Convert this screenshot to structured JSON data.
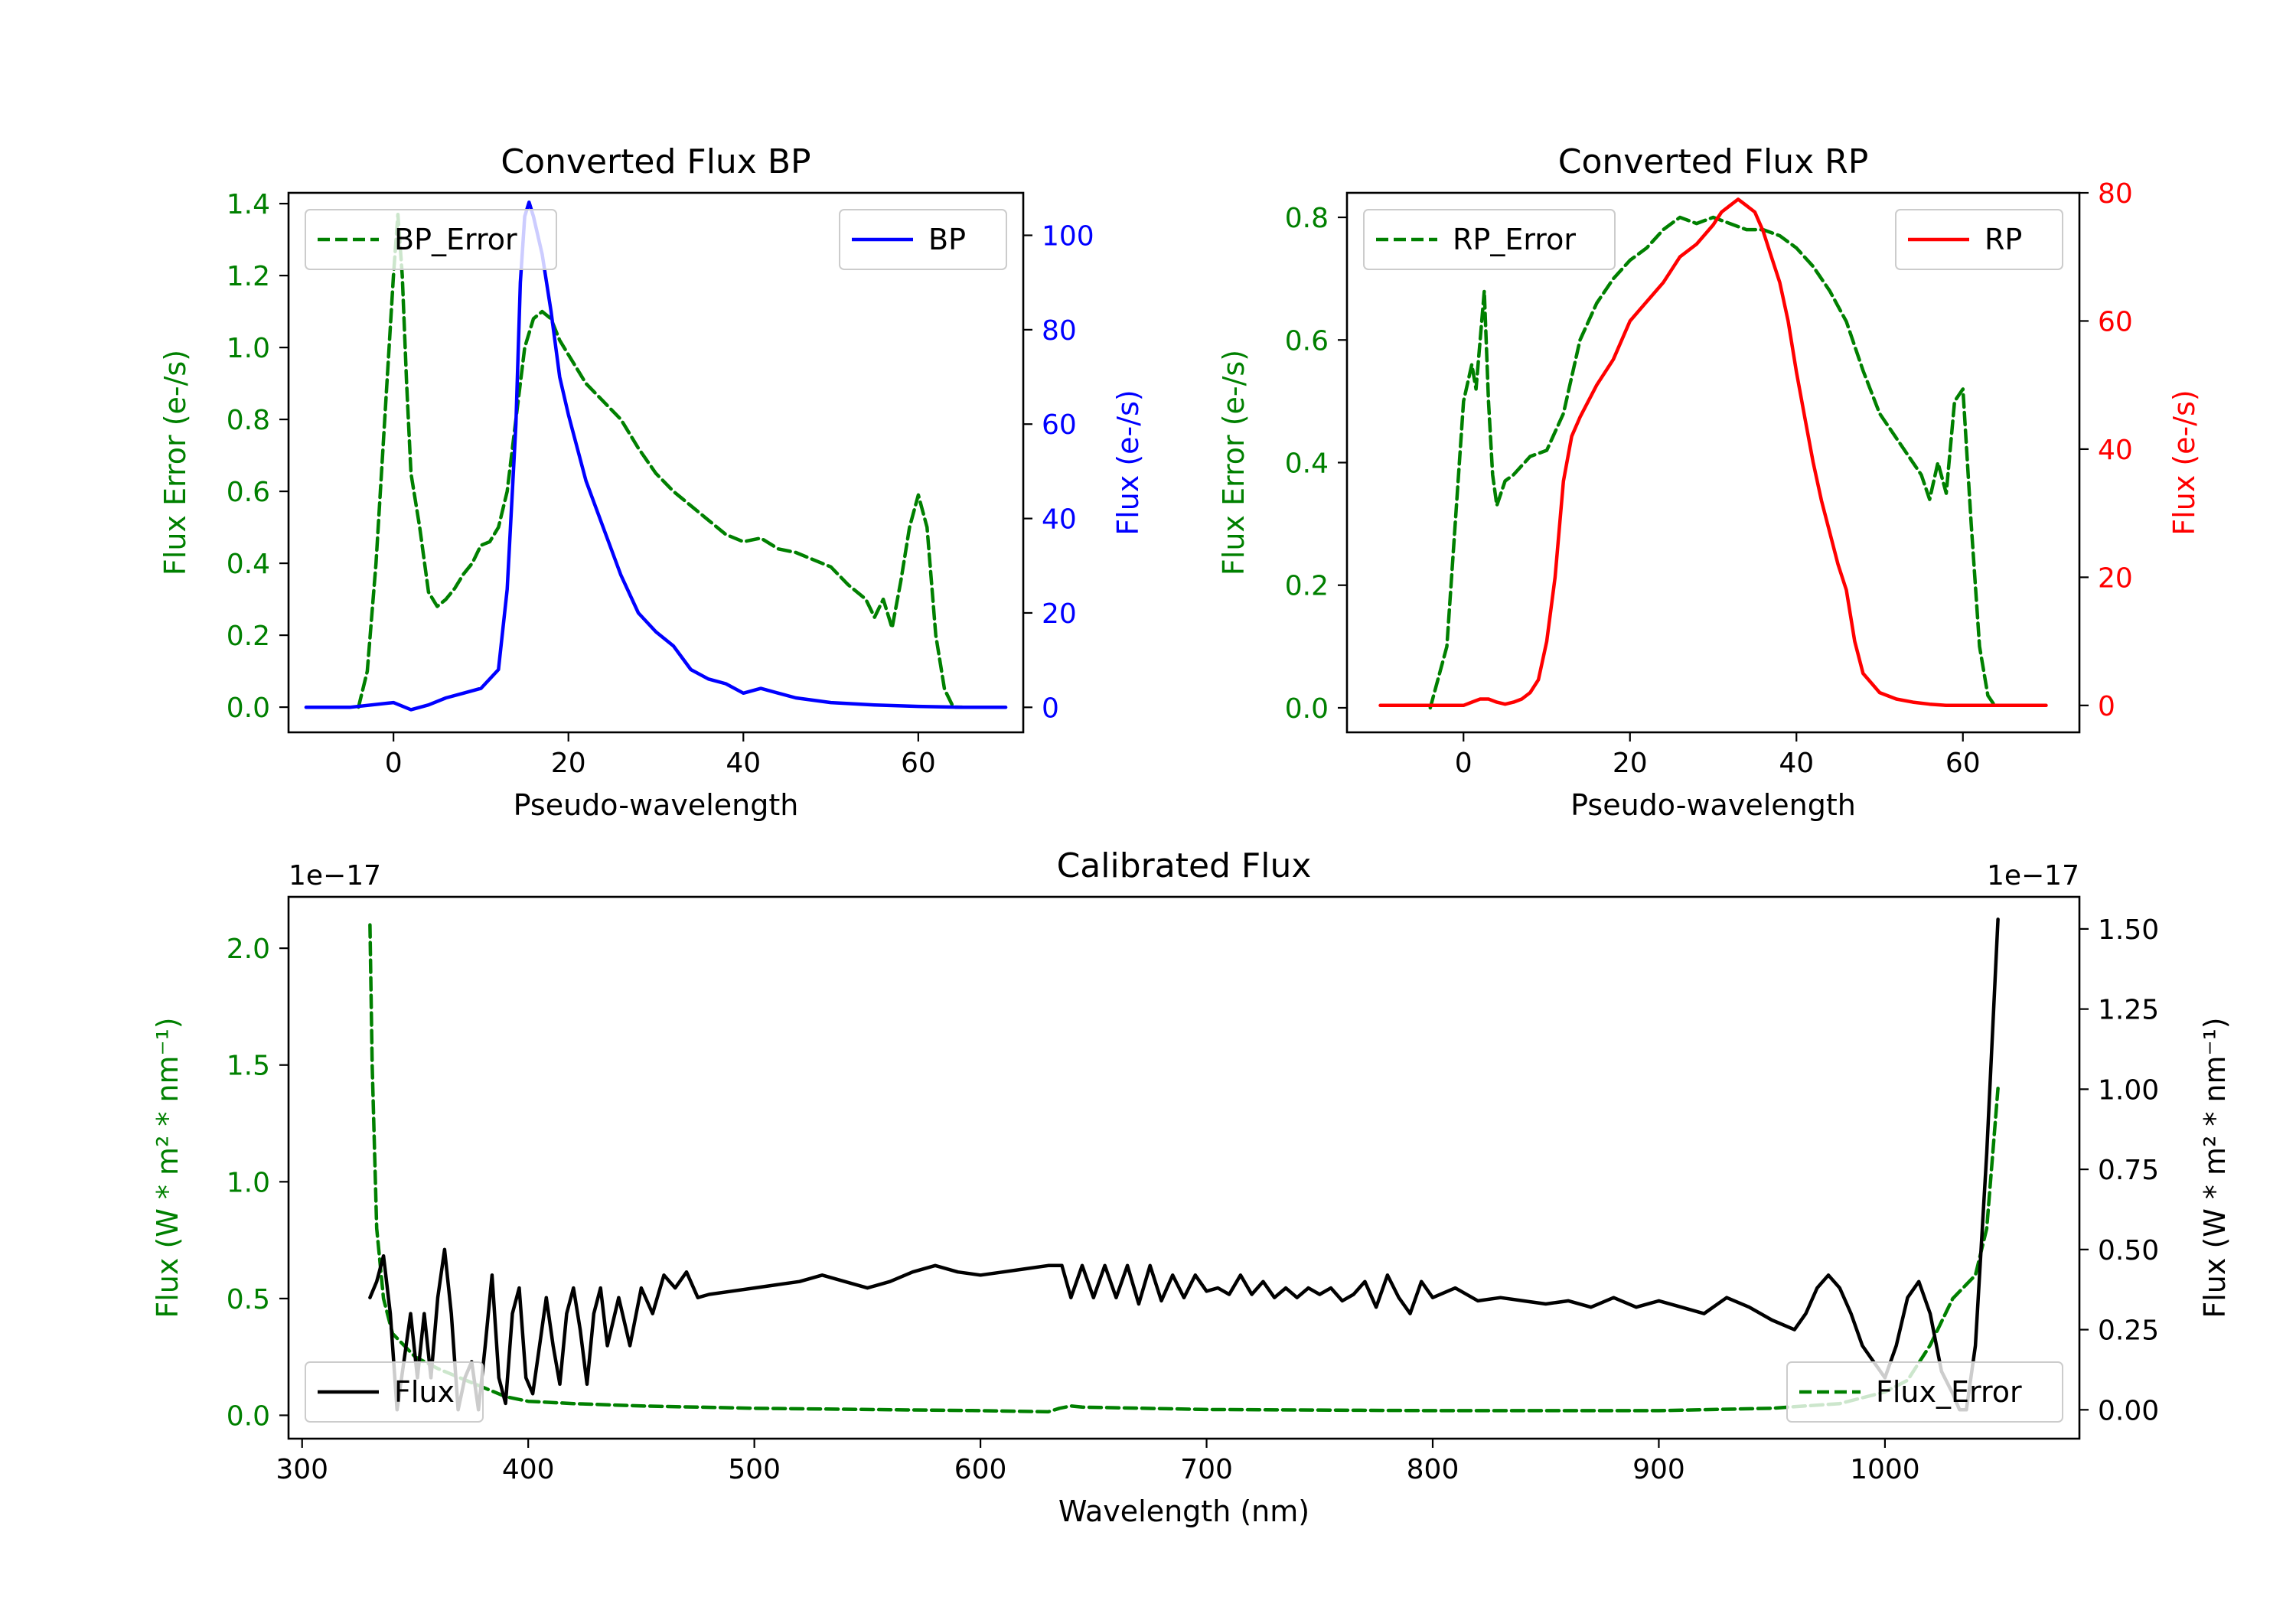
{
  "colors": {
    "error": "#008000",
    "bp": "#0000ff",
    "rp": "#ff0000",
    "flux": "#000000"
  },
  "chart_data": [
    {
      "id": "bp",
      "type": "line",
      "title": "Converted Flux BP",
      "xlabel": "Pseudo-wavelength",
      "ylabel_left": "Flux Error (e-/s)",
      "ylabel_right": "Flux (e-/s)",
      "xlim": [
        -12,
        72
      ],
      "ylim_left": [
        -0.07,
        1.43
      ],
      "ylim_right": [
        -5.3,
        109
      ],
      "xticks": [
        0,
        20,
        40,
        60
      ],
      "xtick_labels": [
        "0",
        "20",
        "40",
        "60"
      ],
      "yticks_left": [
        0.0,
        0.2,
        0.4,
        0.6,
        0.8,
        1.0,
        1.2,
        1.4
      ],
      "ytick_labels_left": [
        "0.0",
        "0.2",
        "0.4",
        "0.6",
        "0.8",
        "1.0",
        "1.2",
        "1.4"
      ],
      "yticks_right": [
        0,
        20,
        40,
        60,
        80,
        100
      ],
      "ytick_labels_right": [
        "0",
        "20",
        "40",
        "60",
        "80",
        "100"
      ],
      "legend_left": "BP_Error",
      "legend_right": "BP",
      "series": [
        {
          "name": "BP_Error",
          "axis": "left",
          "style": "dashed",
          "x": [
            -4,
            -3,
            -2,
            -1,
            0,
            0.5,
            1,
            1.5,
            2,
            3,
            4,
            5,
            6,
            7,
            8,
            9,
            10,
            11,
            12,
            13,
            14,
            15,
            16,
            17,
            18,
            19,
            20,
            22,
            24,
            26,
            28,
            30,
            32,
            34,
            36,
            38,
            40,
            42,
            44,
            46,
            48,
            50,
            52,
            54,
            55,
            56,
            57,
            58,
            59,
            60,
            61,
            62,
            63,
            64,
            65
          ],
          "y": [
            0.0,
            0.1,
            0.4,
            0.8,
            1.2,
            1.37,
            1.2,
            0.9,
            0.65,
            0.5,
            0.32,
            0.28,
            0.3,
            0.33,
            0.37,
            0.4,
            0.45,
            0.46,
            0.5,
            0.6,
            0.8,
            1.0,
            1.08,
            1.1,
            1.08,
            1.02,
            0.98,
            0.9,
            0.85,
            0.8,
            0.72,
            0.65,
            0.6,
            0.56,
            0.52,
            0.48,
            0.46,
            0.47,
            0.44,
            0.43,
            0.41,
            0.39,
            0.34,
            0.3,
            0.25,
            0.3,
            0.22,
            0.35,
            0.5,
            0.59,
            0.5,
            0.2,
            0.05,
            0.0,
            0.0
          ]
        },
        {
          "name": "BP",
          "axis": "right",
          "style": "solid",
          "x": [
            -10,
            -5,
            0,
            2,
            4,
            6,
            8,
            10,
            12,
            13,
            14,
            14.5,
            15,
            15.5,
            16,
            17,
            18,
            19,
            20,
            22,
            24,
            26,
            28,
            30,
            32,
            34,
            36,
            38,
            40,
            42,
            44,
            46,
            50,
            55,
            60,
            65,
            70
          ],
          "y": [
            0,
            0,
            1,
            -0.5,
            0.5,
            2,
            3,
            4,
            8,
            25,
            60,
            90,
            104,
            107,
            104,
            96,
            84,
            70,
            62,
            48,
            38,
            28,
            20,
            16,
            13,
            8,
            6,
            5,
            3,
            4,
            3,
            2,
            1,
            0.5,
            0.2,
            0,
            0
          ]
        }
      ]
    },
    {
      "id": "rp",
      "type": "line",
      "title": "Converted Flux RP",
      "xlabel": "Pseudo-wavelength",
      "ylabel_left": "Flux Error (e-/s)",
      "ylabel_right": "Flux (e-/s)",
      "xlim": [
        -14,
        74
      ],
      "ylim_left": [
        -0.04,
        0.84
      ],
      "ylim_right": [
        -4.2,
        80
      ],
      "xticks": [
        0,
        20,
        40,
        60
      ],
      "xtick_labels": [
        "0",
        "20",
        "40",
        "60"
      ],
      "yticks_left": [
        0.0,
        0.2,
        0.4,
        0.6,
        0.8
      ],
      "ytick_labels_left": [
        "0.0",
        "0.2",
        "0.4",
        "0.6",
        "0.8"
      ],
      "yticks_right": [
        0,
        20,
        40,
        60,
        80
      ],
      "ytick_labels_right": [
        "0",
        "20",
        "40",
        "60",
        "80"
      ],
      "legend_left": "RP_Error",
      "legend_right": "RP",
      "series": [
        {
          "name": "RP_Error",
          "axis": "left",
          "style": "dashed",
          "x": [
            -4,
            -2,
            -1,
            0,
            1,
            1.5,
            2,
            2.5,
            3,
            3.5,
            4,
            5,
            6,
            8,
            10,
            12,
            14,
            16,
            18,
            20,
            22,
            24,
            26,
            28,
            30,
            32,
            34,
            36,
            38,
            40,
            42,
            44,
            46,
            48,
            50,
            52,
            54,
            55,
            56,
            57,
            58,
            59,
            60,
            61,
            62,
            63,
            64
          ],
          "y": [
            0.0,
            0.1,
            0.3,
            0.5,
            0.56,
            0.52,
            0.6,
            0.68,
            0.5,
            0.38,
            0.33,
            0.37,
            0.38,
            0.41,
            0.42,
            0.48,
            0.6,
            0.66,
            0.7,
            0.73,
            0.75,
            0.78,
            0.8,
            0.79,
            0.8,
            0.79,
            0.78,
            0.78,
            0.77,
            0.75,
            0.72,
            0.68,
            0.63,
            0.55,
            0.48,
            0.44,
            0.4,
            0.38,
            0.34,
            0.4,
            0.35,
            0.5,
            0.52,
            0.3,
            0.1,
            0.02,
            0.0
          ]
        },
        {
          "name": "RP",
          "axis": "right",
          "style": "solid",
          "x": [
            -10,
            -5,
            0,
            1,
            2,
            3,
            4,
            5,
            6,
            7,
            8,
            9,
            10,
            11,
            12,
            13,
            14,
            16,
            18,
            20,
            22,
            24,
            26,
            28,
            30,
            31,
            32,
            33,
            34,
            35,
            36,
            37,
            38,
            39,
            40,
            41,
            42,
            43,
            44,
            45,
            46,
            47,
            48,
            50,
            52,
            54,
            56,
            58,
            60,
            65,
            70
          ],
          "y": [
            0,
            0,
            0,
            0.5,
            1,
            1,
            0.5,
            0.2,
            0.5,
            1,
            2,
            4,
            10,
            20,
            35,
            42,
            45,
            50,
            54,
            60,
            63,
            66,
            70,
            72,
            75,
            77,
            78,
            79,
            78,
            77,
            74,
            70,
            66,
            60,
            52,
            45,
            38,
            32,
            27,
            22,
            18,
            10,
            5,
            2,
            1,
            0.5,
            0.2,
            0,
            0,
            0,
            0
          ]
        }
      ]
    },
    {
      "id": "calibrated",
      "type": "line",
      "title": "Calibrated Flux",
      "xlabel": "Wavelength (nm)",
      "ylabel_left": "Flux (W * m² * nm⁻¹)",
      "ylabel_right": "Flux (W * m² * nm⁻¹)",
      "offset_left": "1e−17",
      "offset_right": "1e−17",
      "xlim": [
        294,
        1086
      ],
      "ylim_left": [
        -0.1,
        2.22
      ],
      "ylim_right": [
        -0.09,
        1.6
      ],
      "xticks": [
        300,
        400,
        500,
        600,
        700,
        800,
        900,
        1000
      ],
      "xtick_labels": [
        "300",
        "400",
        "500",
        "600",
        "700",
        "800",
        "900",
        "1000"
      ],
      "yticks_left": [
        0.0,
        0.5,
        1.0,
        1.5,
        2.0
      ],
      "ytick_labels_left": [
        "0.0",
        "0.5",
        "1.0",
        "1.5",
        "2.0"
      ],
      "yticks_right": [
        0.0,
        0.25,
        0.5,
        0.75,
        1.0,
        1.25,
        1.5
      ],
      "ytick_labels_right": [
        "0.00",
        "0.25",
        "0.50",
        "0.75",
        "1.00",
        "1.25",
        "1.50"
      ],
      "legend_left": "Flux",
      "legend_right": "Flux_Error",
      "series": [
        {
          "name": "Flux_Error",
          "axis": "left",
          "style": "dashed",
          "x": [
            330,
            331,
            333,
            336,
            340,
            345,
            350,
            360,
            370,
            380,
            390,
            400,
            420,
            450,
            500,
            550,
            600,
            630,
            635,
            640,
            645,
            700,
            800,
            900,
            950,
            980,
            1000,
            1010,
            1020,
            1030,
            1040,
            1045,
            1050
          ],
          "y": [
            2.1,
            1.5,
            0.8,
            0.5,
            0.35,
            0.3,
            0.25,
            0.2,
            0.16,
            0.12,
            0.08,
            0.06,
            0.05,
            0.04,
            0.03,
            0.025,
            0.02,
            0.015,
            0.03,
            0.04,
            0.035,
            0.025,
            0.02,
            0.02,
            0.03,
            0.05,
            0.1,
            0.15,
            0.3,
            0.5,
            0.6,
            0.8,
            1.4
          ]
        },
        {
          "name": "Flux",
          "axis": "right",
          "style": "solid",
          "x": [
            330,
            333,
            336,
            339,
            342,
            345,
            348,
            351,
            354,
            357,
            360,
            363,
            366,
            369,
            372,
            375,
            378,
            381,
            384,
            387,
            390,
            393,
            396,
            399,
            402,
            405,
            408,
            411,
            414,
            417,
            420,
            423,
            426,
            429,
            432,
            435,
            440,
            445,
            450,
            455,
            460,
            465,
            470,
            475,
            480,
            490,
            500,
            510,
            520,
            530,
            540,
            550,
            560,
            570,
            580,
            590,
            600,
            610,
            620,
            630,
            636,
            640,
            645,
            650,
            655,
            660,
            665,
            670,
            675,
            680,
            685,
            690,
            695,
            700,
            705,
            710,
            715,
            720,
            725,
            730,
            735,
            740,
            745,
            750,
            755,
            760,
            765,
            770,
            775,
            780,
            785,
            790,
            795,
            800,
            810,
            820,
            830,
            840,
            850,
            860,
            870,
            880,
            890,
            900,
            910,
            920,
            930,
            940,
            950,
            960,
            965,
            970,
            975,
            980,
            985,
            990,
            995,
            1000,
            1005,
            1010,
            1015,
            1020,
            1025,
            1030,
            1033,
            1036,
            1040,
            1045,
            1050
          ],
          "y": [
            0.35,
            0.4,
            0.48,
            0.3,
            0.0,
            0.15,
            0.3,
            0.1,
            0.3,
            0.1,
            0.35,
            0.5,
            0.3,
            0.0,
            0.1,
            0.15,
            0.0,
            0.2,
            0.42,
            0.1,
            0.02,
            0.3,
            0.38,
            0.1,
            0.05,
            0.2,
            0.35,
            0.2,
            0.08,
            0.3,
            0.38,
            0.25,
            0.08,
            0.3,
            0.38,
            0.2,
            0.35,
            0.2,
            0.38,
            0.3,
            0.42,
            0.38,
            0.43,
            0.35,
            0.36,
            0.37,
            0.38,
            0.39,
            0.4,
            0.42,
            0.4,
            0.38,
            0.4,
            0.43,
            0.45,
            0.43,
            0.42,
            0.43,
            0.44,
            0.45,
            0.45,
            0.35,
            0.45,
            0.35,
            0.45,
            0.35,
            0.45,
            0.33,
            0.45,
            0.34,
            0.42,
            0.35,
            0.42,
            0.37,
            0.38,
            0.36,
            0.42,
            0.36,
            0.4,
            0.35,
            0.38,
            0.35,
            0.38,
            0.36,
            0.38,
            0.34,
            0.36,
            0.4,
            0.32,
            0.42,
            0.35,
            0.3,
            0.4,
            0.35,
            0.38,
            0.34,
            0.35,
            0.34,
            0.33,
            0.34,
            0.32,
            0.35,
            0.32,
            0.34,
            0.32,
            0.3,
            0.35,
            0.32,
            0.28,
            0.25,
            0.3,
            0.38,
            0.42,
            0.38,
            0.3,
            0.2,
            0.15,
            0.1,
            0.2,
            0.35,
            0.4,
            0.3,
            0.12,
            0.05,
            0.0,
            0.0,
            0.2,
            0.8,
            1.53
          ]
        }
      ]
    }
  ]
}
